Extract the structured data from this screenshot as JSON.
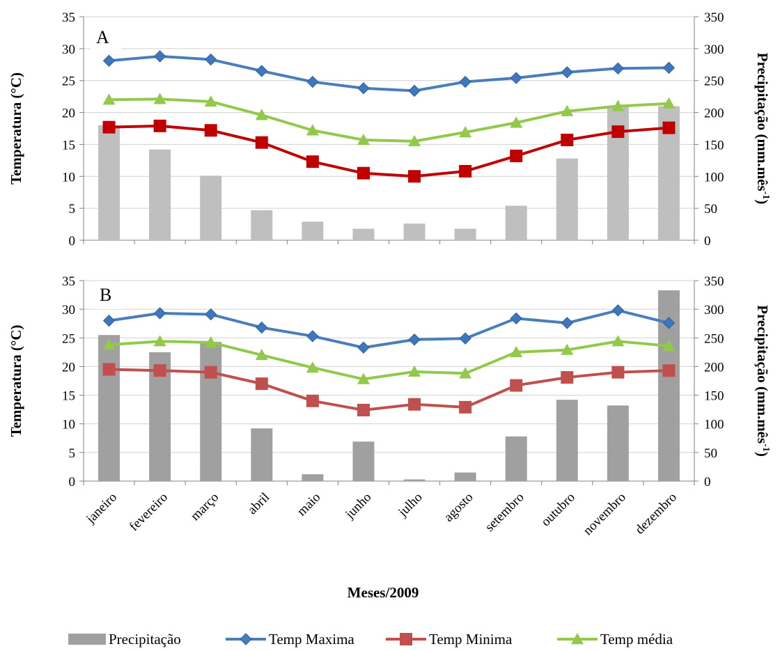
{
  "colors": {
    "precip_a": "#bfbfbf",
    "precip_b": "#a0a0a0",
    "temp_max": "#4a7ebb",
    "temp_max_marker": "#3f77bf",
    "temp_min_a": "#c00000",
    "temp_min_b": "#c0504d",
    "temp_media": "#92c94a",
    "grid": "#d0d0d0",
    "axis": "#808080"
  },
  "icons": {
    "temp_max": "diamond-marker",
    "temp_min": "square-marker",
    "temp_media": "triangle-marker",
    "precip": "bar-swatch"
  },
  "legend": {
    "items": [
      {
        "key": "precip",
        "label": "Precipitação"
      },
      {
        "key": "temp_max",
        "label": "Temp Maxima"
      },
      {
        "key": "temp_min",
        "label": "Temp Minima"
      },
      {
        "key": "temp_media",
        "label": "Temp média"
      }
    ]
  },
  "xlabel": "Meses/2009",
  "chart_data": [
    {
      "panel": "A",
      "type": "bar+line",
      "categories": [
        "janeiro",
        "fevereiro",
        "março",
        "abril",
        "maio",
        "junho",
        "julho",
        "agosto",
        "setembro",
        "outubro",
        "novembro",
        "dezembro"
      ],
      "ylabel": "Temperatura (°C)",
      "y2label_main": "Precipitação (mm.mês",
      "y2label_sup": "-1",
      "y2label_end": ")",
      "ylim": [
        0,
        35
      ],
      "y_ticks": [
        0,
        5,
        10,
        15,
        20,
        25,
        30,
        35
      ],
      "y2lim": [
        0,
        350
      ],
      "y2_ticks": [
        0,
        50,
        100,
        150,
        200,
        250,
        300,
        350
      ],
      "grid": true,
      "series": [
        {
          "key": "precip",
          "name": "Precipitação",
          "kind": "bar",
          "axis": "right",
          "values": [
            180,
            142,
            101,
            47,
            29,
            18,
            26,
            18,
            54,
            128,
            210,
            210
          ]
        },
        {
          "key": "temp_max",
          "name": "Temp Maxima",
          "kind": "line",
          "axis": "left",
          "values": [
            28.1,
            28.8,
            28.3,
            26.5,
            24.8,
            23.8,
            23.4,
            24.8,
            25.4,
            26.3,
            26.9,
            27.0
          ]
        },
        {
          "key": "temp_min",
          "name": "Temp Minima",
          "kind": "line",
          "axis": "left",
          "values": [
            17.7,
            17.9,
            17.2,
            15.3,
            12.3,
            10.5,
            10.0,
            10.8,
            13.2,
            15.7,
            17.0,
            17.6
          ]
        },
        {
          "key": "temp_media",
          "name": "Temp média",
          "kind": "line",
          "axis": "left",
          "values": [
            22.0,
            22.1,
            21.7,
            19.6,
            17.2,
            15.7,
            15.5,
            16.9,
            18.4,
            20.2,
            21.0,
            21.4
          ]
        }
      ]
    },
    {
      "panel": "B",
      "type": "bar+line",
      "categories": [
        "janeiro",
        "fevereiro",
        "março",
        "abril",
        "maio",
        "junho",
        "julho",
        "agosto",
        "setembro",
        "outubro",
        "novembro",
        "dezembro"
      ],
      "ylabel": "Temperatura (°C)",
      "y2label_main": "Precipitação (mm.mês",
      "y2label_sup": "-1",
      "y2label_end": ")",
      "ylim": [
        0,
        35
      ],
      "y_ticks": [
        0,
        5,
        10,
        15,
        20,
        25,
        30,
        35
      ],
      "y2lim": [
        0,
        350
      ],
      "y2_ticks": [
        0,
        50,
        100,
        150,
        200,
        250,
        300,
        350
      ],
      "grid": true,
      "series": [
        {
          "key": "precip",
          "name": "Precipitação",
          "kind": "bar",
          "axis": "right",
          "values": [
            255,
            225,
            243,
            92,
            12,
            69,
            3,
            15,
            78,
            142,
            132,
            333
          ]
        },
        {
          "key": "temp_max",
          "name": "Temp Maxima",
          "kind": "line",
          "axis": "left",
          "values": [
            28.0,
            29.3,
            29.1,
            26.8,
            25.3,
            23.3,
            24.7,
            24.9,
            28.4,
            27.6,
            29.8,
            27.6
          ]
        },
        {
          "key": "temp_min",
          "name": "Temp Minima",
          "kind": "line",
          "axis": "left",
          "values": [
            19.5,
            19.3,
            19.0,
            17.0,
            14.0,
            12.4,
            13.4,
            12.9,
            16.7,
            18.1,
            19.0,
            19.3
          ]
        },
        {
          "key": "temp_media",
          "name": "Temp média",
          "kind": "line",
          "axis": "left",
          "values": [
            23.8,
            24.4,
            24.2,
            22.0,
            19.8,
            17.8,
            19.1,
            18.8,
            22.5,
            22.9,
            24.4,
            23.6
          ]
        }
      ]
    }
  ]
}
